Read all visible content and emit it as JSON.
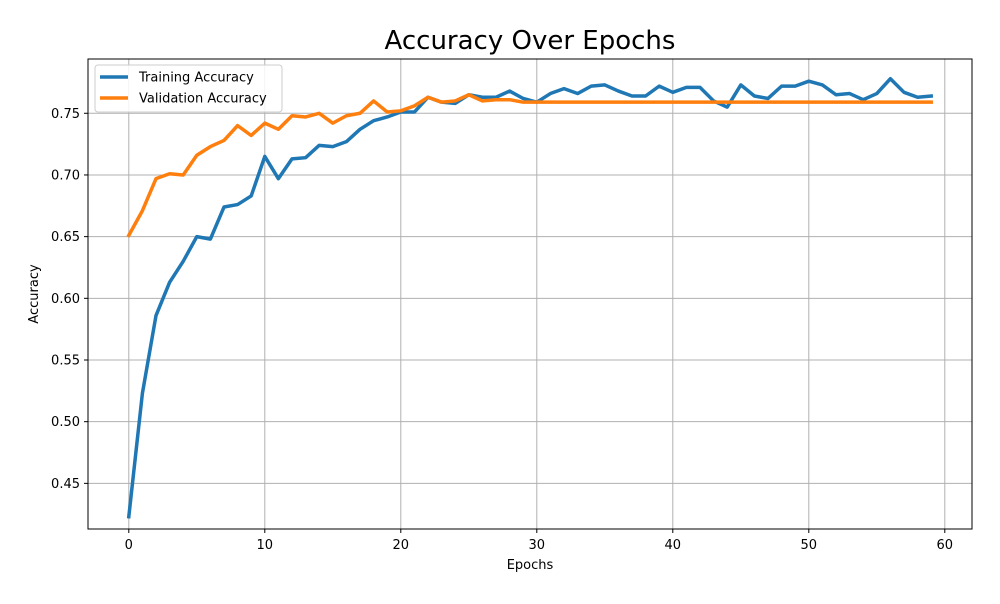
{
  "chart_data": {
    "type": "line",
    "title": "Accuracy Over Epochs",
    "xlabel": "Epochs",
    "ylabel": "Accuracy",
    "xlim": [
      -3,
      62
    ],
    "ylim": [
      0.413,
      0.794
    ],
    "xticks": [
      0,
      10,
      20,
      30,
      40,
      50,
      60
    ],
    "yticks": [
      0.45,
      0.5,
      0.55,
      0.6,
      0.65,
      0.7,
      0.75
    ],
    "ytick_labels": [
      "0.45",
      "0.50",
      "0.55",
      "0.60",
      "0.65",
      "0.70",
      "0.75"
    ],
    "grid": true,
    "legend_position": "upper-left",
    "x": [
      0,
      1,
      2,
      3,
      4,
      5,
      6,
      7,
      8,
      9,
      10,
      11,
      12,
      13,
      14,
      15,
      16,
      17,
      18,
      19,
      20,
      21,
      22,
      23,
      24,
      25,
      26,
      27,
      28,
      29,
      30,
      31,
      32,
      33,
      34,
      35,
      36,
      37,
      38,
      39,
      40,
      41,
      42,
      43,
      44,
      45,
      46,
      47,
      48,
      49,
      50,
      51,
      52,
      53,
      54,
      55,
      56,
      57,
      58,
      59
    ],
    "series": [
      {
        "name": "Training Accuracy",
        "color": "#1f77b4",
        "values": [
          0.423,
          0.523,
          0.586,
          0.613,
          0.63,
          0.65,
          0.648,
          0.674,
          0.676,
          0.683,
          0.715,
          0.697,
          0.713,
          0.714,
          0.724,
          0.723,
          0.727,
          0.737,
          0.744,
          0.747,
          0.751,
          0.751,
          0.763,
          0.759,
          0.758,
          0.765,
          0.763,
          0.763,
          0.768,
          0.762,
          0.759,
          0.766,
          0.77,
          0.766,
          0.772,
          0.773,
          0.768,
          0.764,
          0.764,
          0.772,
          0.767,
          0.771,
          0.771,
          0.76,
          0.755,
          0.773,
          0.764,
          0.762,
          0.772,
          0.772,
          0.776,
          0.773,
          0.765,
          0.766,
          0.761,
          0.766,
          0.778,
          0.767,
          0.763,
          0.764
        ]
      },
      {
        "name": "Validation Accuracy",
        "color": "#ff7f0e",
        "values": [
          0.651,
          0.671,
          0.697,
          0.701,
          0.7,
          0.716,
          0.723,
          0.728,
          0.74,
          0.732,
          0.742,
          0.737,
          0.748,
          0.747,
          0.75,
          0.742,
          0.748,
          0.75,
          0.76,
          0.751,
          0.752,
          0.756,
          0.763,
          0.759,
          0.76,
          0.765,
          0.76,
          0.761,
          0.761,
          0.759,
          0.759,
          0.759,
          0.759,
          0.759,
          0.759,
          0.759,
          0.759,
          0.759,
          0.759,
          0.759,
          0.759,
          0.759,
          0.759,
          0.759,
          0.759,
          0.759,
          0.759,
          0.759,
          0.759,
          0.759,
          0.759,
          0.759,
          0.759,
          0.759,
          0.759,
          0.759,
          0.759,
          0.759,
          0.759,
          0.759
        ]
      }
    ]
  }
}
